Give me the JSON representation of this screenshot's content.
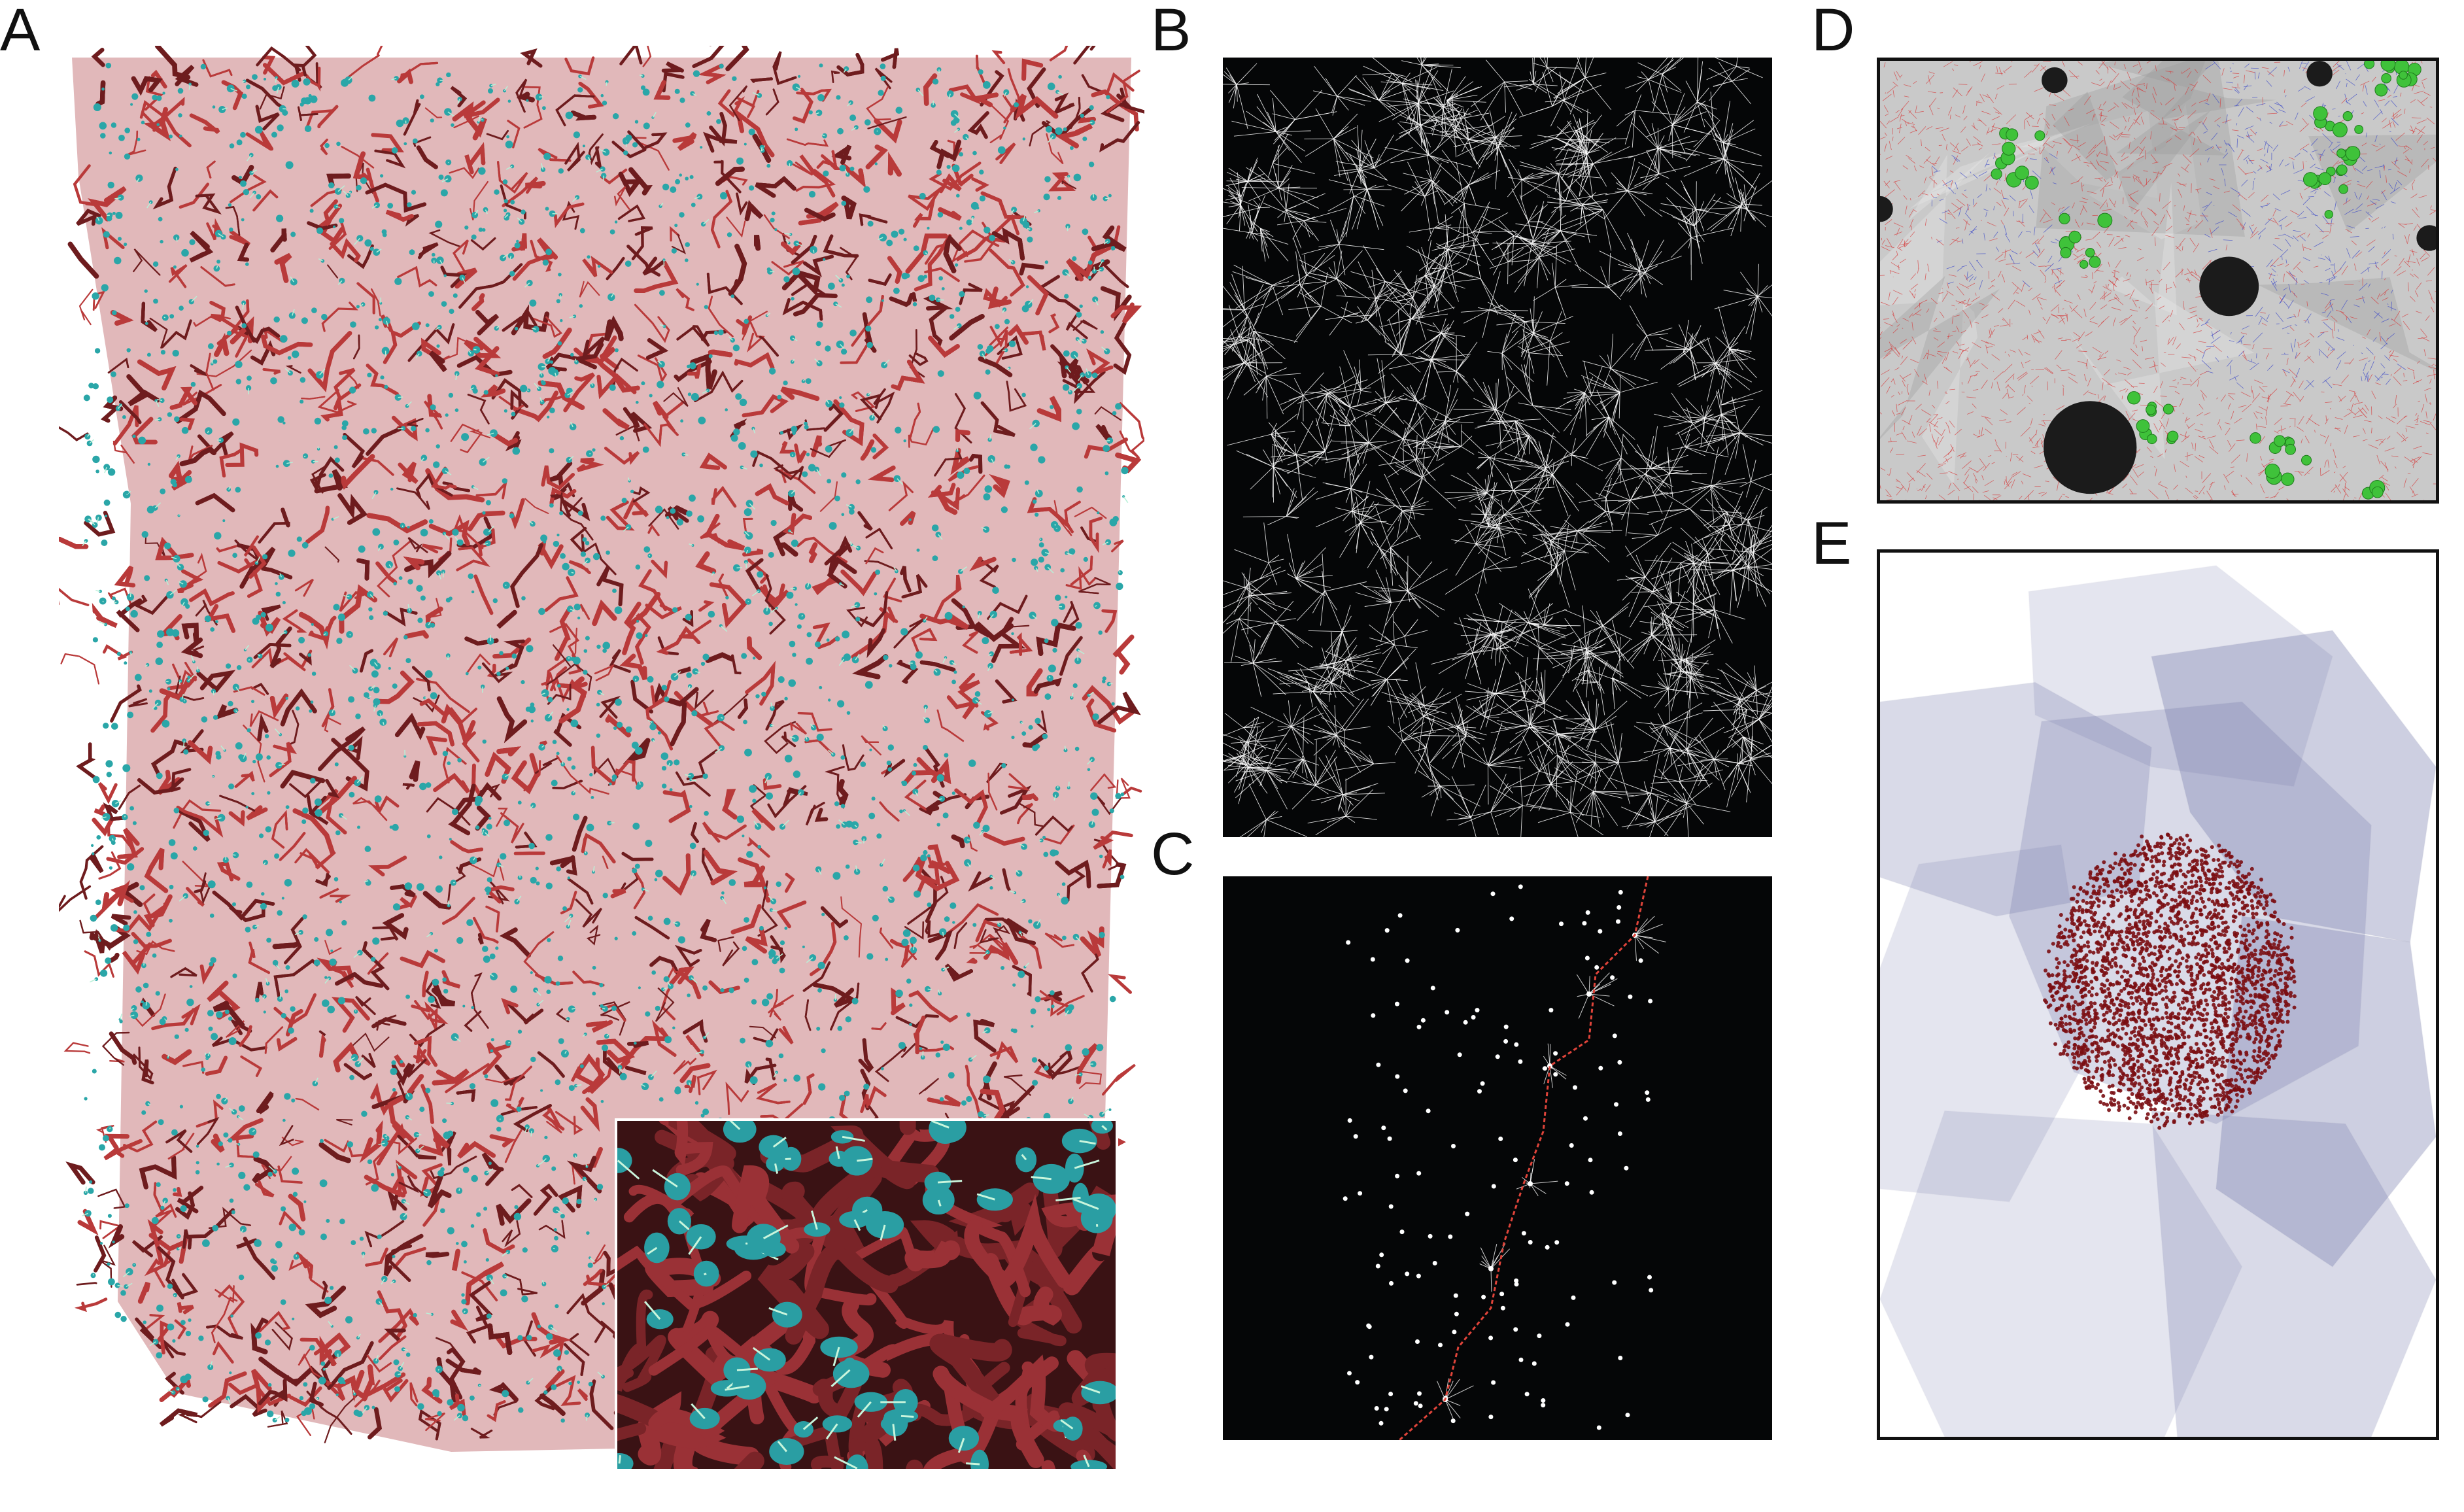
{
  "figure": {
    "panels": [
      {
        "id": "A",
        "label": "A",
        "content": "vascular-network-render",
        "colors": {
          "vessel": "#b93a3a",
          "vessel_dark": "#6e1c1e",
          "cell": "#2aa6a8",
          "process": "#b8f0d8"
        }
      },
      {
        "id": "B",
        "label": "B",
        "content": "white-graph-on-black",
        "colors": {
          "background": "#050607",
          "edge": "#ffffff"
        }
      },
      {
        "id": "C",
        "label": "C",
        "content": "path-with-points-on-black",
        "colors": {
          "background": "#050607",
          "point": "#ffffff",
          "path": "#e0443a"
        }
      },
      {
        "id": "D",
        "label": "D",
        "content": "cells-and-vessels-3d",
        "colors": {
          "red": "#d63a3a",
          "blue": "#3b48c8",
          "green": "#3fc23a",
          "sphere": "#1b1b1b"
        }
      },
      {
        "id": "E",
        "label": "E",
        "content": "polyhedra-with-point-cloud",
        "colors": {
          "polyhedra": "#6f74a8",
          "points": "#7a0d12"
        }
      }
    ]
  }
}
